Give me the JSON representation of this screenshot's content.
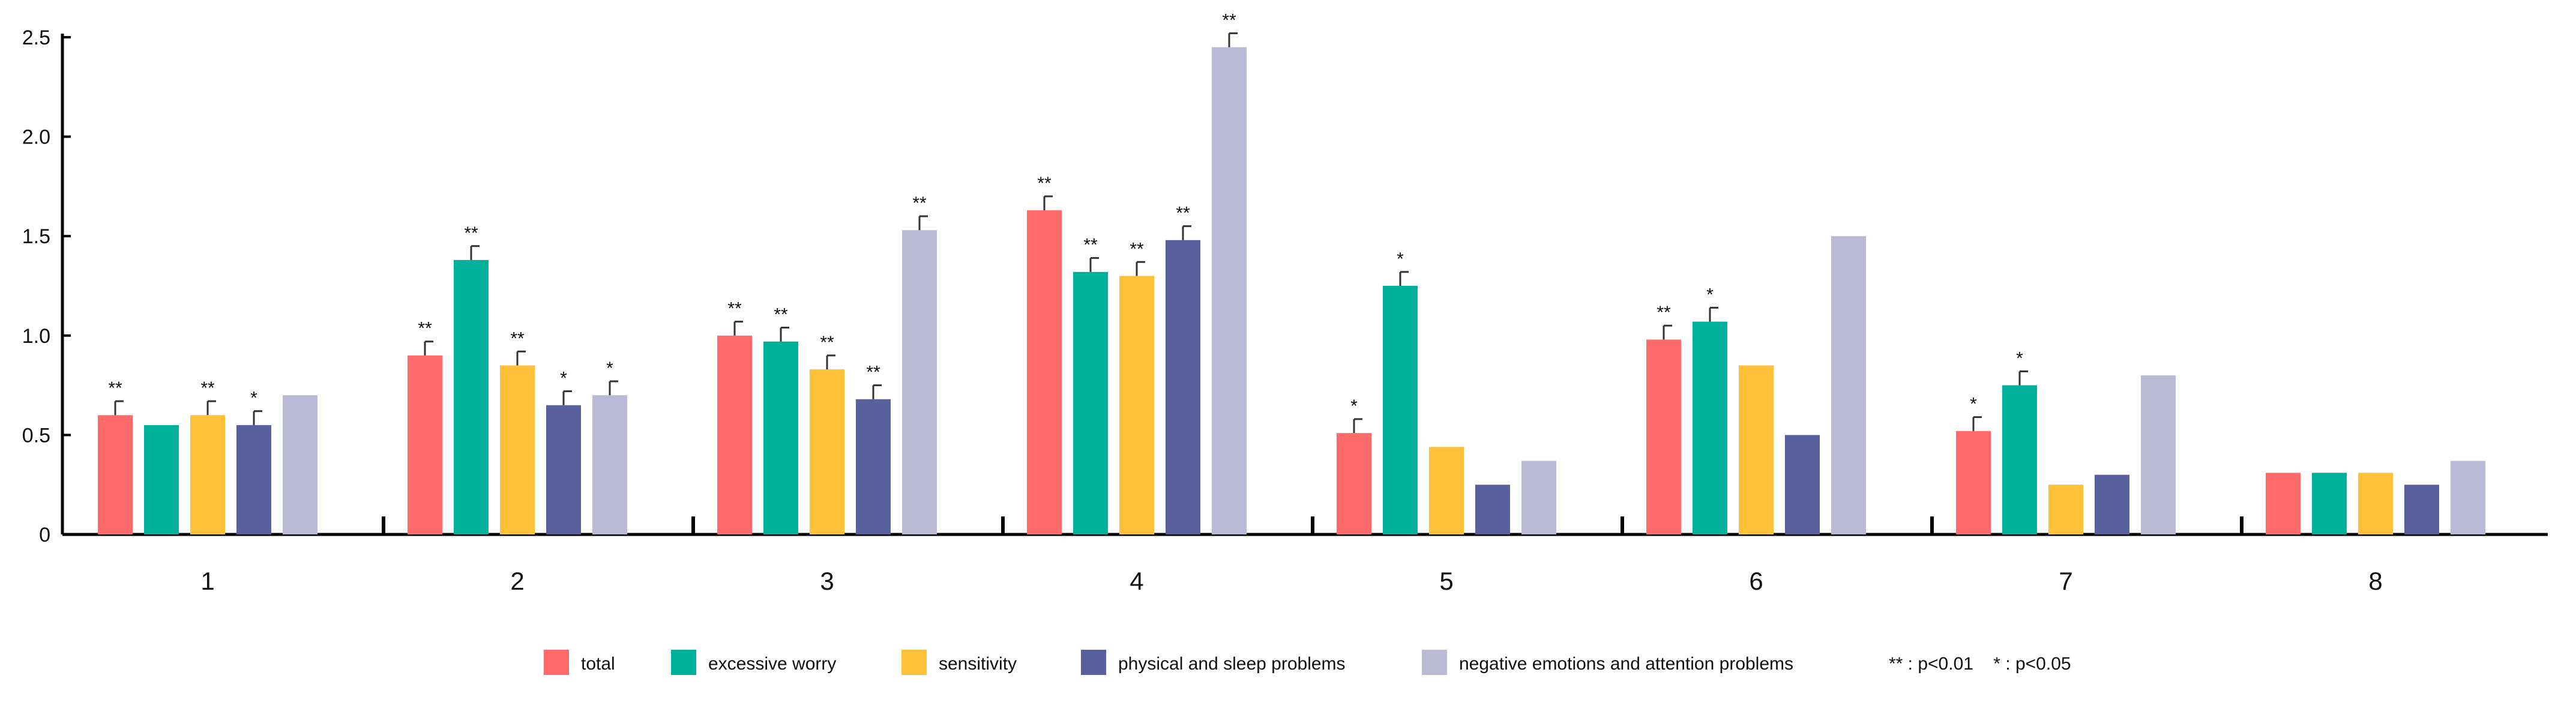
{
  "chart_data": {
    "type": "bar",
    "title": "",
    "xlabel": "",
    "ylabel": "",
    "ylim": [
      0,
      2.5
    ],
    "y_ticks": [
      "0",
      "0.5",
      "1.0",
      "1.5",
      "2.0",
      "2.5"
    ],
    "y_tick_values": [
      0,
      0.5,
      1.0,
      1.5,
      2.0,
      2.5
    ],
    "categories": [
      "1",
      "2",
      "3",
      "4",
      "5",
      "6",
      "7",
      "8"
    ],
    "series": [
      {
        "name": "total",
        "color": "#FF6B6B",
        "values": [
          0.6,
          0.9,
          1.0,
          1.63,
          0.51,
          0.98,
          0.52,
          0.31
        ],
        "errors": [
          0.07,
          0.07,
          0.07,
          0.07,
          0.07,
          0.07,
          0.07,
          null
        ],
        "sig": [
          "**",
          "**",
          "**",
          "**",
          "*",
          "**",
          "*",
          ""
        ]
      },
      {
        "name": "excessive worry",
        "color": "#00B09B",
        "values": [
          0.55,
          1.38,
          0.97,
          1.32,
          1.25,
          1.07,
          0.75,
          0.31
        ],
        "errors": [
          null,
          0.07,
          0.07,
          0.07,
          0.07,
          0.07,
          0.07,
          null
        ],
        "sig": [
          "",
          "**",
          "**",
          "**",
          "*",
          "*",
          "*",
          ""
        ]
      },
      {
        "name": "sensitivity",
        "color": "#FFC03A",
        "values": [
          0.6,
          0.85,
          0.83,
          1.3,
          0.44,
          0.85,
          0.25,
          0.31
        ],
        "errors": [
          0.07,
          0.07,
          0.07,
          0.07,
          null,
          null,
          null,
          null
        ],
        "sig": [
          "**",
          "**",
          "**",
          "**",
          "",
          "",
          "",
          ""
        ]
      },
      {
        "name": "physical and sleep problems",
        "color": "#58609E",
        "values": [
          0.55,
          0.65,
          0.68,
          1.48,
          0.25,
          0.5,
          0.3,
          0.25
        ],
        "errors": [
          0.07,
          0.07,
          0.07,
          0.07,
          null,
          null,
          null,
          null
        ],
        "sig": [
          "*",
          "*",
          "**",
          "**",
          "",
          "",
          "",
          ""
        ]
      },
      {
        "name": "negative emotions and attention problems",
        "color": "#BBBAD6",
        "values": [
          0.7,
          0.7,
          1.53,
          2.45,
          0.37,
          1.5,
          0.8,
          0.37
        ],
        "errors": [
          null,
          0.07,
          0.07,
          0.07,
          null,
          null,
          null,
          null
        ],
        "sig": [
          "",
          "*",
          "**",
          "**",
          "",
          "",
          "",
          ""
        ]
      }
    ],
    "legend_position": "bottom-center",
    "annotation": "** : p<0.01    * : p<0.05",
    "grid": false
  }
}
